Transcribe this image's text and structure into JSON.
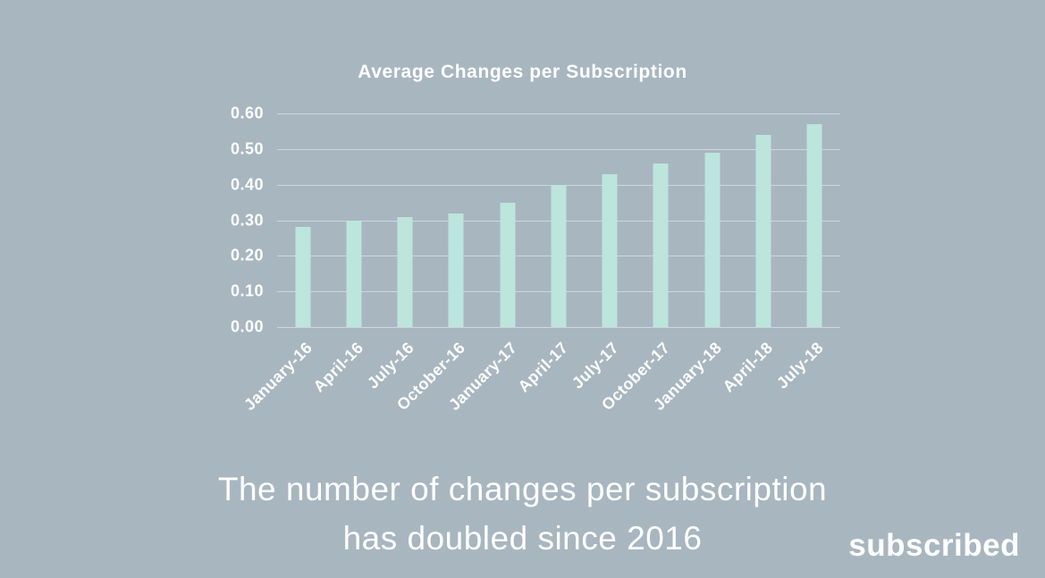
{
  "page": {
    "background_color": "#a8b6c0",
    "text_color": "#ffffff",
    "gridline_color": "rgba(255,255,255,0.45)"
  },
  "chart_data": {
    "type": "bar",
    "title": "Average Changes per Subscription",
    "categories": [
      "January-16",
      "April-16",
      "July-16",
      "October-16",
      "January-17",
      "April-17",
      "July-17",
      "October-17",
      "January-18",
      "April-18",
      "July-18"
    ],
    "values": [
      0.28,
      0.3,
      0.31,
      0.32,
      0.35,
      0.4,
      0.43,
      0.46,
      0.49,
      0.54,
      0.57
    ],
    "xlabel": "",
    "ylabel": "",
    "ylim": [
      0,
      0.6
    ],
    "yticks": [
      "0.60",
      "0.50",
      "0.40",
      "0.30",
      "0.20",
      "0.10",
      "0.00"
    ],
    "bar_color": "#bce5dc",
    "grid": true,
    "legend_position": "none"
  },
  "caption": {
    "line1": "The number of changes per subscription",
    "line2": "has doubled since 2016"
  },
  "brand": {
    "label": "subscribed"
  }
}
